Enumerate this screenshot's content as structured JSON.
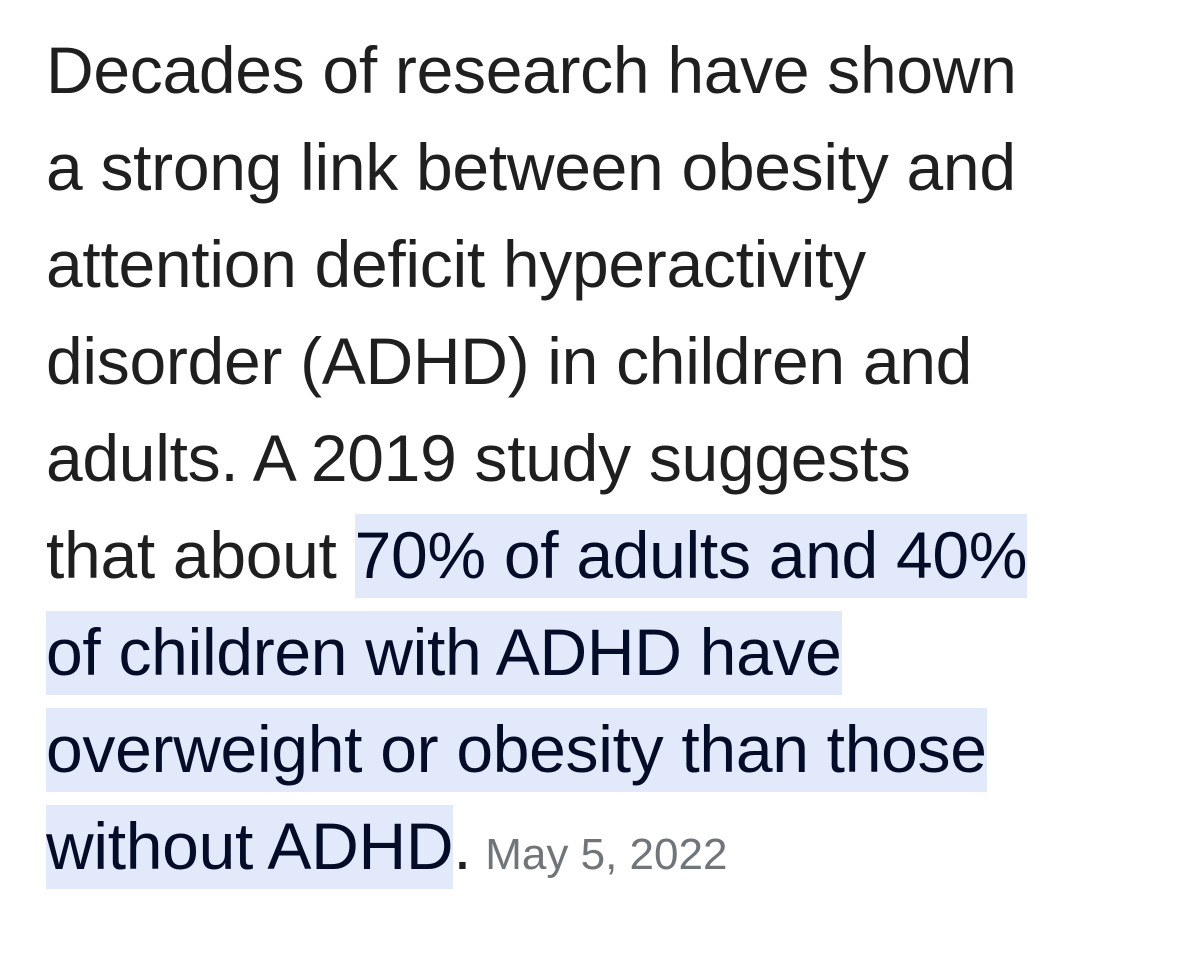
{
  "featured_snippet": {
    "lines": [
      "Decades of research have shown",
      "a strong link between obesity and",
      "attention deficit hyperactivity",
      "disorder (ADHD) in children and",
      "adults. A 2019 study suggests"
    ],
    "line6_plain": "that about ",
    "line6_highlight": "70% of adults and 40%",
    "highlight_lines": [
      "of children with ADHD have",
      "overweight or obesity than those"
    ],
    "last_line_highlight": "without ADHD",
    "last_line_period": ".",
    "date": "May 5, 2022"
  },
  "colors": {
    "text": "#1f1f1f",
    "highlight_bg": "#e1e9fb",
    "highlight_text": "#040c28",
    "date": "#70757a"
  }
}
